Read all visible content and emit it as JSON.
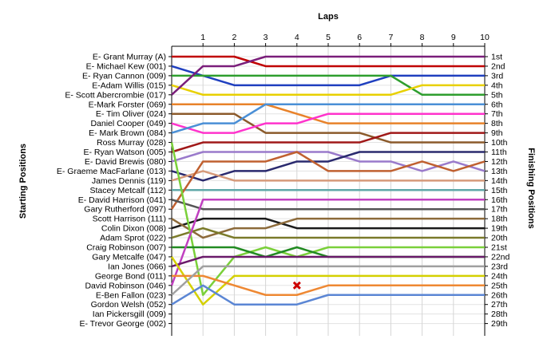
{
  "chart_data": {
    "type": "line",
    "title": "Laps",
    "xlabel": "Laps",
    "ylabel_left": "Starting Positions",
    "ylabel_right": "Finishing Positions",
    "x": [
      0,
      1,
      2,
      3,
      4,
      5,
      6,
      7,
      8,
      9,
      10
    ],
    "x_ticks": [
      "1",
      "2",
      "3",
      "4",
      "5",
      "6",
      "7",
      "8",
      "9",
      "10"
    ],
    "y_range": [
      1,
      29
    ],
    "grid": true,
    "starting_positions": [
      "E- Grant Murray (A)",
      "E- Michael Kew (001)",
      "E- Ryan Cannon (009)",
      "E-Adam Willis (015)",
      "E- Scott Abercrombie (017)",
      "E-Mark Forster (069)",
      "E- Tim Oliver (024)",
      "Daniel Cooper (049)",
      "E- Mark Brown (084)",
      "Ross Murray (028)",
      "E- Ryan Watson (005)",
      "E- David Brewis (080)",
      "E- Graeme MacFarlane (013)",
      "James Dennis (119)",
      "Stacey Metcalf (112)",
      "E- David Harrison (041)",
      "Gary Rutherford (097)",
      "Scott Harrison (111)",
      "Colin Dixon (008)",
      "Adam Sprot (022)",
      "Craig Robinson (007)",
      "Gary Metcalfe (047)",
      "Ian Jones (066)",
      "George Bond (011)",
      "David Robinson (046)",
      "E-Ben Fallon (023)",
      "Gordon Welsh (052)",
      "Ian Pickersgill (009)",
      "E- Trevor George (002)"
    ],
    "finishing_positions": [
      "1st",
      "2nd",
      "3rd",
      "4th",
      "5th",
      "6th",
      "7th",
      "8th",
      "9th",
      "10th",
      "11th",
      "12th",
      "13th",
      "14th",
      "15th",
      "16th",
      "17th",
      "18th",
      "19th",
      "20th",
      "21st",
      "22nd",
      "23rd",
      "24th",
      "25th",
      "26th",
      "27th",
      "28th",
      "29th"
    ],
    "series": [
      {
        "color": "#c00000",
        "values": [
          1,
          1,
          1,
          2,
          2,
          2,
          2,
          2,
          2,
          2,
          2
        ]
      },
      {
        "color": "#1f3fbf",
        "values": [
          2,
          3,
          4,
          4,
          4,
          4,
          4,
          3,
          3,
          3,
          3
        ]
      },
      {
        "color": "#2e9e2e",
        "values": [
          3,
          3,
          3,
          3,
          3,
          3,
          3,
          3,
          5,
          5,
          5
        ]
      },
      {
        "color": "#e8d000",
        "values": [
          4,
          5,
          5,
          5,
          5,
          5,
          5,
          5,
          4,
          4,
          4
        ]
      },
      {
        "color": "#7a1e7a",
        "values": [
          5,
          2,
          2,
          1,
          1,
          1,
          1,
          1,
          1,
          1,
          1
        ]
      },
      {
        "color": "#e8822a",
        "values": [
          6,
          6,
          6,
          6,
          7,
          8,
          8,
          8,
          8,
          8,
          8
        ]
      },
      {
        "color": "#8b5a2b",
        "values": [
          7,
          7,
          7,
          9,
          9,
          9,
          9,
          10,
          10,
          10,
          10
        ]
      },
      {
        "color": "#ff33cc",
        "values": [
          8,
          9,
          9,
          8,
          8,
          7,
          7,
          7,
          7,
          7,
          7
        ]
      },
      {
        "color": "#4a8fd6",
        "values": [
          9,
          8,
          8,
          6,
          6,
          6,
          6,
          6,
          6,
          6,
          6
        ]
      },
      {
        "color": "#a01818",
        "values": [
          11,
          10,
          10,
          10,
          10,
          10,
          10,
          9,
          9,
          9,
          9
        ]
      },
      {
        "color": "#9a7acb",
        "values": [
          12,
          11,
          11,
          11,
          11,
          11,
          12,
          12,
          13,
          12,
          13
        ]
      },
      {
        "color": "#2a2a6e",
        "values": [
          13,
          14,
          13,
          13,
          12,
          12,
          11,
          11,
          11,
          11,
          11
        ]
      },
      {
        "color": "#d69a7a",
        "values": [
          14,
          13,
          14,
          14,
          14,
          14,
          14,
          14,
          14,
          14,
          14
        ]
      },
      {
        "color": "#5fa8a8",
        "values": [
          15,
          15,
          15,
          15,
          15,
          15,
          15,
          15,
          15,
          15,
          15
        ]
      },
      {
        "color": "#c06030",
        "values": [
          17,
          12,
          12,
          12,
          11,
          13,
          13,
          13,
          12,
          13,
          12
        ]
      },
      {
        "color": "#555555",
        "values": [
          16,
          17,
          17,
          17,
          17,
          17,
          17,
          17,
          17,
          17,
          17
        ]
      },
      {
        "color": "#1a1a1a",
        "values": [
          19,
          18,
          18,
          18,
          19,
          19,
          19,
          19,
          19,
          19,
          19
        ]
      },
      {
        "color": "#8c6a3a",
        "values": [
          18,
          20,
          19,
          19,
          18,
          18,
          18,
          18,
          18,
          18,
          18
        ]
      },
      {
        "color": "#7a7a2a",
        "values": [
          20,
          19,
          20,
          20,
          20,
          20,
          20,
          20,
          20,
          20,
          20
        ]
      },
      {
        "color": "#7ad03a",
        "values": [
          10,
          26,
          22,
          21,
          22,
          21,
          21,
          21,
          21,
          21,
          21
        ]
      },
      {
        "color": "#228b22",
        "values": [
          21,
          21,
          21,
          22,
          21,
          22,
          22,
          22,
          22,
          22,
          22
        ]
      },
      {
        "color": "#c040c0",
        "values": [
          25,
          16,
          16,
          16,
          16,
          16,
          16,
          16,
          16,
          16,
          16
        ]
      },
      {
        "color": "#6a1a6a",
        "values": [
          23,
          22,
          22,
          22,
          22,
          22,
          22,
          22,
          22,
          22,
          22
        ]
      },
      {
        "color": "#d4d000",
        "values": [
          22,
          27,
          24,
          24,
          24,
          24,
          24,
          24,
          24,
          24,
          24
        ]
      },
      {
        "color": "#ee8833",
        "values": [
          24,
          24,
          25,
          26,
          26,
          25,
          25,
          25,
          25,
          25,
          25
        ]
      },
      {
        "color": "#5b86d4",
        "values": [
          27,
          25,
          27,
          27,
          27,
          26,
          26,
          26,
          26,
          26,
          26
        ]
      },
      {
        "color": "#a0a0a0",
        "values": [
          26,
          23,
          23,
          23,
          23,
          23,
          23,
          23,
          23,
          23,
          23
        ]
      }
    ],
    "markers": [
      {
        "type": "x",
        "color": "#cc0000",
        "x": 4,
        "y": 25
      }
    ]
  }
}
